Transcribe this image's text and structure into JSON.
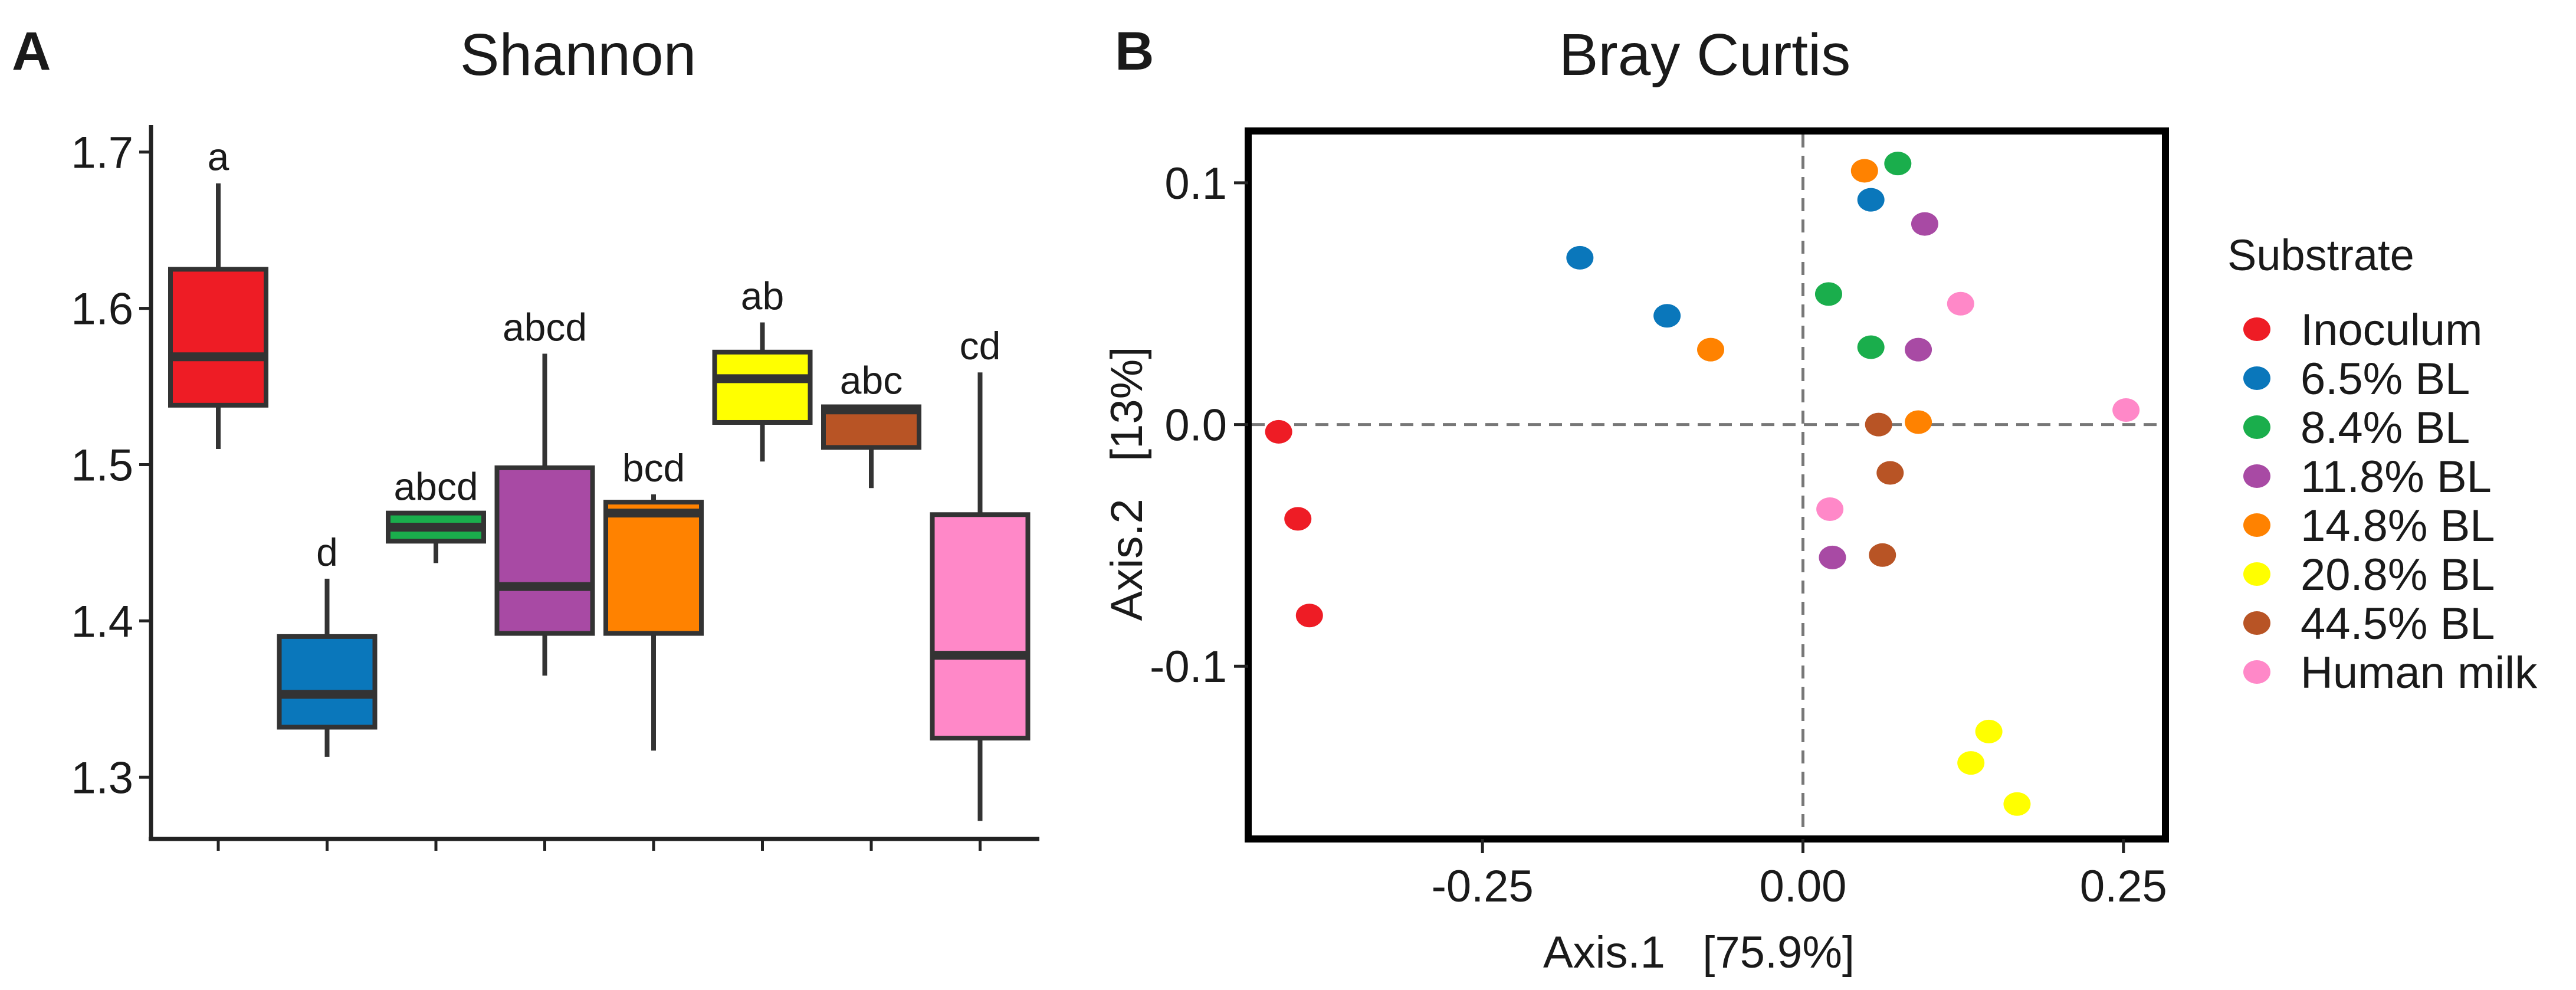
{
  "panel_a": {
    "letter": "A",
    "title": "Shannon",
    "y_ticks": [
      "1.3",
      "1.4",
      "1.5",
      "1.6",
      "1.7"
    ]
  },
  "panel_b": {
    "letter": "B",
    "title": "Bray Curtis",
    "xlabel": "Axis.1   [75.9%]",
    "ylabel": "Axis.2   [13%]",
    "x_ticks": [
      "-0.25",
      "0.00",
      "0.25"
    ],
    "y_ticks": [
      "-0.1",
      "0.0",
      "0.1"
    ],
    "legend_title": "Substrate"
  },
  "chart_data": [
    {
      "type": "box",
      "title": "Shannon",
      "xlabel": "",
      "ylabel": "",
      "ylim": [
        1.265,
        1.715
      ],
      "y_ticks": [
        1.3,
        1.4,
        1.5,
        1.6,
        1.7
      ],
      "boxes": [
        {
          "group": "Inoculum",
          "color": "#ee1c25",
          "min": 1.51,
          "q1": 1.538,
          "median": 1.569,
          "q3": 1.625,
          "max": 1.68,
          "letter": "a"
        },
        {
          "group": "6.5% BL",
          "color": "#0a77bb",
          "min": 1.313,
          "q1": 1.332,
          "median": 1.353,
          "q3": 1.39,
          "max": 1.427,
          "letter": "d"
        },
        {
          "group": "8.4% BL",
          "color": "#1aae4c",
          "min": 1.437,
          "q1": 1.451,
          "median": 1.46,
          "q3": 1.469,
          "max": 1.469,
          "letter": "abcd"
        },
        {
          "group": "11.8% BL",
          "color": "#a84aa4",
          "min": 1.365,
          "q1": 1.392,
          "median": 1.422,
          "q3": 1.498,
          "max": 1.571,
          "letter": "abcd"
        },
        {
          "group": "14.8% BL",
          "color": "#ff8200",
          "min": 1.317,
          "q1": 1.392,
          "median": 1.469,
          "q3": 1.476,
          "max": 1.481,
          "letter": "bcd"
        },
        {
          "group": "20.8% BL",
          "color": "#ffff00",
          "min": 1.502,
          "q1": 1.527,
          "median": 1.555,
          "q3": 1.572,
          "max": 1.591,
          "letter": "ab"
        },
        {
          "group": "44.5% BL",
          "color": "#b85425",
          "min": 1.485,
          "q1": 1.511,
          "median": 1.535,
          "q3": 1.537,
          "max": 1.537,
          "letter": "abc"
        },
        {
          "group": "Human milk",
          "color": "#ff88c8",
          "min": 1.272,
          "q1": 1.325,
          "median": 1.378,
          "q3": 1.468,
          "max": 1.559,
          "letter": "cd"
        }
      ]
    },
    {
      "type": "scatter",
      "title": "Bray Curtis",
      "xlabel": "Axis.1 [75.9%]",
      "ylabel": "Axis.2 [13%]",
      "xlim": [
        -0.43,
        0.28
      ],
      "ylim": [
        -0.17,
        0.12
      ],
      "x_ticks": [
        -0.25,
        0.0,
        0.25
      ],
      "y_ticks": [
        -0.1,
        0.0,
        0.1
      ],
      "reference_lines": {
        "x": 0,
        "y": 0
      },
      "legend": {
        "title": "Substrate",
        "position": "right"
      },
      "series": [
        {
          "name": "Inoculum",
          "color": "#ee1c25",
          "points": [
            [
              -0.409,
              -0.003
            ],
            [
              -0.394,
              -0.039
            ],
            [
              -0.385,
              -0.079
            ]
          ]
        },
        {
          "name": "6.5% BL",
          "color": "#0a77bb",
          "points": [
            [
              0.053,
              0.093
            ],
            [
              -0.174,
              0.069
            ],
            [
              -0.106,
              0.045
            ]
          ]
        },
        {
          "name": "8.4% BL",
          "color": "#1aae4c",
          "points": [
            [
              0.074,
              0.108
            ],
            [
              0.02,
              0.054
            ],
            [
              0.053,
              0.032
            ]
          ]
        },
        {
          "name": "11.8% BL",
          "color": "#a84aa4",
          "points": [
            [
              0.095,
              0.083
            ],
            [
              0.09,
              0.031
            ],
            [
              0.023,
              -0.055
            ]
          ]
        },
        {
          "name": "14.8% BL",
          "color": "#ff8200",
          "points": [
            [
              0.048,
              0.105
            ],
            [
              -0.072,
              0.031
            ],
            [
              0.09,
              0.001
            ]
          ]
        },
        {
          "name": "20.8% BL",
          "color": "#ffff00",
          "points": [
            [
              0.145,
              -0.127
            ],
            [
              0.131,
              -0.14
            ],
            [
              0.167,
              -0.157
            ]
          ]
        },
        {
          "name": "44.5% BL",
          "color": "#b85425",
          "points": [
            [
              0.059,
              0.0
            ],
            [
              0.068,
              -0.02
            ],
            [
              0.062,
              -0.054
            ]
          ]
        },
        {
          "name": "Human milk",
          "color": "#ff88c8",
          "points": [
            [
              0.123,
              0.05
            ],
            [
              0.252,
              0.006
            ],
            [
              0.021,
              -0.035
            ]
          ]
        }
      ]
    }
  ]
}
